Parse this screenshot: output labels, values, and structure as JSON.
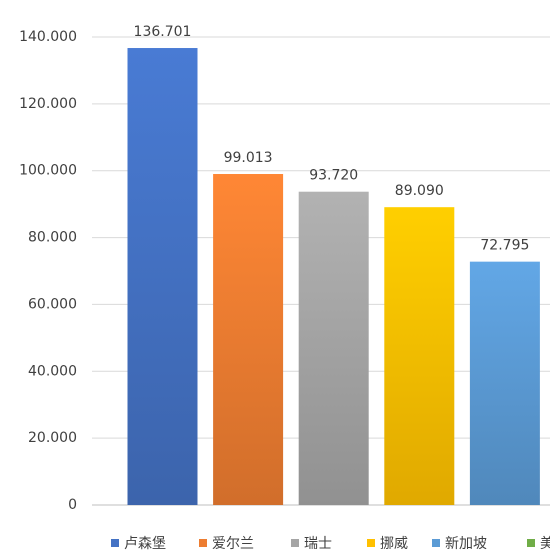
{
  "chart_data": {
    "type": "bar",
    "categories": [
      "卢森堡",
      "爱尔兰",
      "瑞士",
      "挪威",
      "新加坡",
      "美"
    ],
    "values": [
      136.701,
      99.013,
      93.72,
      89.09,
      72.795,
      null
    ],
    "value_labels": [
      "136.701",
      "99.013",
      "93.720",
      "89.090",
      "72.795",
      null
    ],
    "colors": [
      "#4472c4",
      "#ed7d31",
      "#a5a5a5",
      "#ffc000",
      "#5b9bd5",
      "#70ad47"
    ],
    "ylim": [
      0,
      140
    ],
    "yticks": [
      0,
      {
        "value": 20,
        "label": "20.000"
      },
      {
        "value": 40,
        "label": "40.000"
      },
      {
        "value": 60,
        "label": "60.000"
      },
      {
        "value": 80,
        "label": "80.000"
      },
      {
        "value": 100,
        "label": "100.000"
      },
      {
        "value": 120,
        "label": "120.000"
      },
      {
        "value": 140,
        "label": "140.000"
      }
    ],
    "grid": true,
    "legend": "bottom"
  }
}
